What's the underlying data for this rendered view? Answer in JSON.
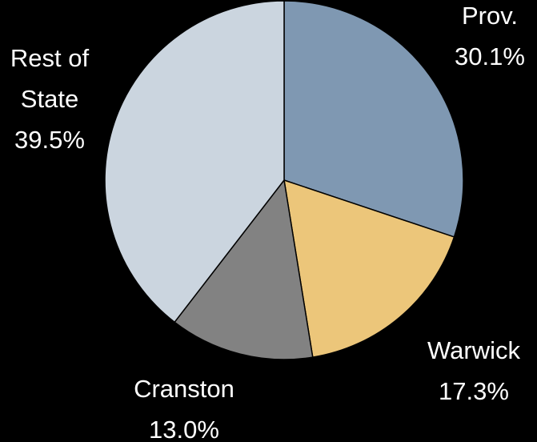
{
  "chart_data": {
    "type": "pie",
    "categories": [
      "Prov.",
      "Warwick",
      "Cranston",
      "Rest of State"
    ],
    "values": [
      30.1,
      17.3,
      13.0,
      39.5
    ],
    "value_labels": [
      "30.1%",
      "17.3%",
      "13.0%",
      "39.5%"
    ],
    "colors": [
      "#7f98b2",
      "#ecc67a",
      "#828282",
      "#cbd5df"
    ]
  }
}
